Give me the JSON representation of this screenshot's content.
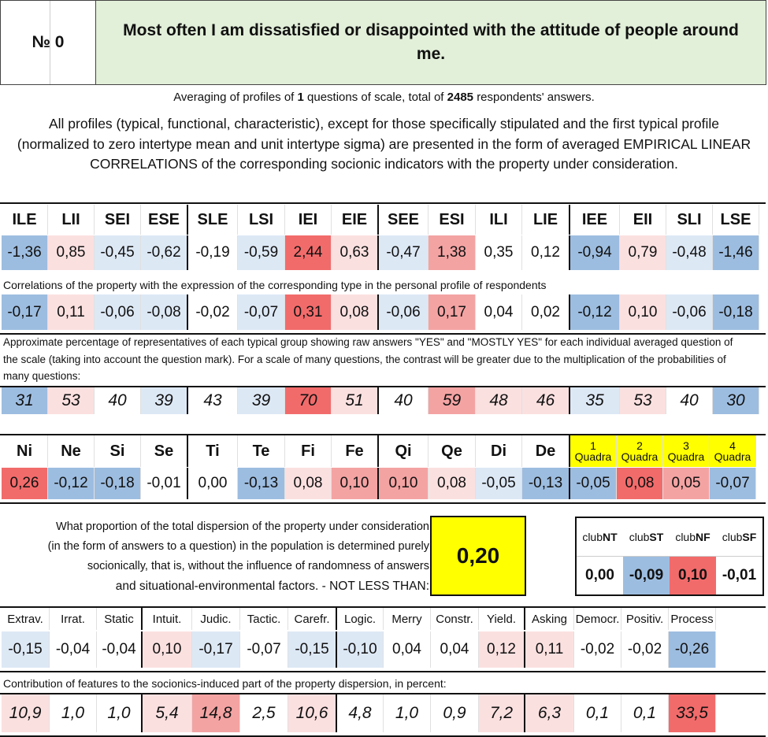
{
  "header": {
    "number_label": "№ 0",
    "title": "Most often I am dissatisfied or disappointed with the attitude of people around me."
  },
  "averaging": {
    "prefix": "Averaging of profiles of",
    "questions": "1",
    "middle": "questions of scale, total of",
    "answers": "2485",
    "suffix": "respondents' answers."
  },
  "description": "All profiles (typical, functional, characteristic), except for those specifically stipulated and the first typical profile (normalized to zero intertype mean and unit intertype sigma) are presented in the form of averaged EMPIRICAL LINEAR CORRELATIONS of the corresponding socionic indicators with the property under consideration.",
  "types": {
    "labels": [
      "ILE",
      "LII",
      "SEI",
      "ESE",
      "SLE",
      "LSI",
      "IEI",
      "EIE",
      "SEE",
      "ESI",
      "ILI",
      "LIE",
      "IEE",
      "EII",
      "SLI",
      "LSE"
    ],
    "profile": [
      "-1,36",
      "0,85",
      "-0,45",
      "-0,62",
      "-0,19",
      "-0,59",
      "2,44",
      "0,63",
      "-0,47",
      "1,38",
      "0,35",
      "0,12",
      "-0,94",
      "0,79",
      "-0,48",
      "-1,46"
    ],
    "correlation_note": "Correlations of the property with the expression of the corresponding type in the personal profile of respondents",
    "correlations": [
      "-0,17",
      "0,11",
      "-0,06",
      "-0,08",
      "-0,02",
      "-0,07",
      "0,31",
      "0,08",
      "-0,06",
      "0,17",
      "0,04",
      "0,02",
      "-0,12",
      "0,10",
      "-0,06",
      "-0,18"
    ],
    "percent_note": "Approximate percentage of representatives of each typical group showing raw answers \"YES\" and \"MOSTLY YES\" for each individual averaged question of the scale (taking into account the question mark). For a scale of many questions, the contrast will be greater due to the multiplication of the probabilities of many questions:",
    "percents": [
      "31",
      "53",
      "40",
      "39",
      "43",
      "39",
      "70",
      "51",
      "40",
      "59",
      "48",
      "46",
      "35",
      "53",
      "40",
      "30"
    ]
  },
  "functions": {
    "labels": [
      "Ni",
      "Ne",
      "Si",
      "Se",
      "Ti",
      "Te",
      "Fi",
      "Fe",
      "Qi",
      "Qe",
      "Di",
      "De"
    ],
    "values": [
      "0,26",
      "-0,12",
      "-0,18",
      "-0,01",
      "0,00",
      "-0,13",
      "0,08",
      "0,10",
      "0,10",
      "0,08",
      "-0,05",
      "-0,13"
    ],
    "quadra_labels": [
      {
        "num": "1",
        "word": "Quadra"
      },
      {
        "num": "2",
        "word": "Quadra"
      },
      {
        "num": "3",
        "word": "Quadra"
      },
      {
        "num": "4",
        "word": "Quadra"
      }
    ],
    "quadra_values": [
      "-0,05",
      "0,08",
      "0,05",
      "-0,07"
    ]
  },
  "dispersion": {
    "text": "What proportion of the total dispersion of the property under consideration (in the form of answers to a question) in the population is determined purely socionically, that is, without the influence of randomness of answers",
    "text_last": "and situational-environmental factors. - NOT LESS THAN:",
    "value": "0,20"
  },
  "clubs": {
    "labels": [
      {
        "pre": "club",
        "bold": "NT"
      },
      {
        "pre": "club",
        "bold": "ST"
      },
      {
        "pre": "club",
        "bold": "NF"
      },
      {
        "pre": "club",
        "bold": "SF"
      }
    ],
    "values": [
      "0,00",
      "-0,09",
      "0,10",
      "-0,01"
    ]
  },
  "features": {
    "labels": [
      "Extrav.",
      "Irrat.",
      "Static",
      "Intuit.",
      "Judic.",
      "Tactic.",
      "Carefr.",
      "Logic.",
      "Merry",
      "Constr.",
      "Yield.",
      "Asking",
      "Democr.",
      "Positiv.",
      "Process"
    ],
    "values": [
      "-0,15",
      "-0,04",
      "-0,04",
      "0,10",
      "-0,17",
      "-0,07",
      "-0,15",
      "-0,10",
      "0,04",
      "0,04",
      "0,12",
      "0,11",
      "-0,02",
      "-0,02",
      "-0,26"
    ],
    "contribution_note": "Contribution of features to the sociоnics-induced part of the property dispersion, in percent:",
    "contributions": [
      "10,9",
      "1,0",
      "1,0",
      "5,4",
      "14,8",
      "2,5",
      "10,6",
      "4,8",
      "1,0",
      "0,9",
      "7,2",
      "6,3",
      "0,1",
      "0,1",
      "33,5"
    ]
  },
  "colors": {
    "strong_red": "#f26b6b",
    "red": "#f4a3a3",
    "light_red": "#fbe0e0",
    "blue": "#9dbde0",
    "light_blue": "#dde8f5",
    "yellow": "#ffff00",
    "green_header": "#e2efd9"
  }
}
